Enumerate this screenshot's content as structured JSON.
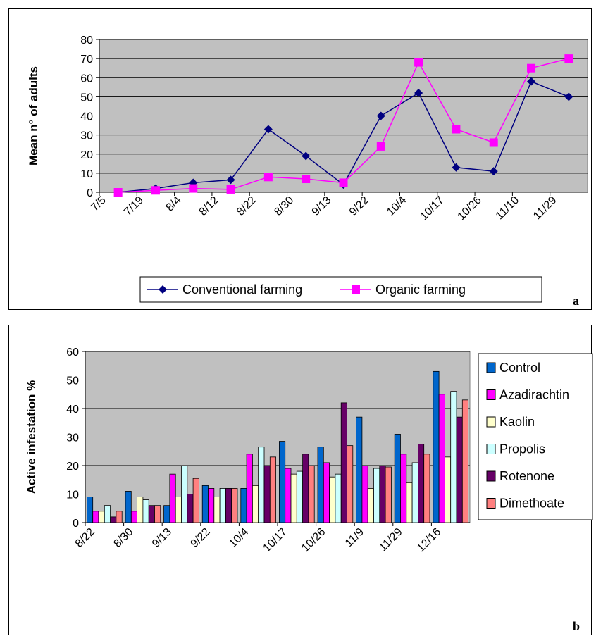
{
  "chart_data": [
    {
      "type": "line",
      "panel_label": "a",
      "ylabel": "Mean n° of adults",
      "xlabel": "",
      "ylim": [
        0,
        80
      ],
      "yticks": [
        "0",
        "10",
        "20",
        "30",
        "40",
        "50",
        "60",
        "70",
        "80"
      ],
      "categories": [
        "7/5",
        "7/19",
        "8/4",
        "8/12",
        "8/22",
        "8/30",
        "9/13",
        "9/22",
        "10/4",
        "10/17",
        "10/26",
        "11/10",
        "11/29"
      ],
      "series": [
        {
          "name": "Conventional farming",
          "color": "#000080",
          "marker": "diamond",
          "values": [
            0,
            2,
            5,
            6.5,
            33,
            19,
            4,
            40,
            52,
            13,
            11,
            58,
            50
          ]
        },
        {
          "name": "Organic farming",
          "color": "#FF00FF",
          "marker": "square",
          "values": [
            0,
            1,
            2,
            1.5,
            8,
            7,
            5,
            24,
            68,
            33,
            26,
            65,
            70
          ]
        }
      ],
      "plot_background": "#C0C0C0",
      "grid": true,
      "legend_position": "bottom"
    },
    {
      "type": "bar",
      "panel_label": "b",
      "ylabel": "Active infestation %",
      "xlabel": "",
      "ylim": [
        0,
        60
      ],
      "yticks": [
        "0",
        "10",
        "20",
        "30",
        "40",
        "50",
        "60"
      ],
      "categories": [
        "8/22",
        "8/30",
        "9/13",
        "9/22",
        "10/4",
        "10/17",
        "10/26",
        "11/9",
        "11/29",
        "12/16"
      ],
      "series": [
        {
          "name": "Control",
          "color": "#0066CC",
          "values": [
            9,
            11,
            6,
            13,
            12,
            28.5,
            26.5,
            37,
            31,
            53
          ]
        },
        {
          "name": "Azadirachtin",
          "color": "#FF00FF",
          "values": [
            4,
            4,
            17,
            12,
            24,
            19,
            21,
            20,
            24,
            45
          ]
        },
        {
          "name": "Kaolin",
          "color": "#FFFFCC",
          "values": [
            4,
            9,
            9,
            9,
            13,
            17,
            16,
            12,
            14,
            23
          ]
        },
        {
          "name": "Propolis",
          "color": "#CCFFFF",
          "values": [
            6,
            8,
            20,
            12,
            26.5,
            18,
            17,
            19,
            21,
            46
          ]
        },
        {
          "name": "Rotenone",
          "color": "#660066",
          "values": [
            2,
            6,
            10,
            12,
            20,
            24,
            42,
            20,
            27.5,
            37
          ]
        },
        {
          "name": "Dimethoate",
          "color": "#FF8080",
          "values": [
            4,
            6,
            15.5,
            12,
            23,
            20,
            27,
            19.5,
            24,
            43
          ]
        }
      ],
      "plot_background": "#C0C0C0",
      "grid": true,
      "legend_position": "right"
    }
  ]
}
